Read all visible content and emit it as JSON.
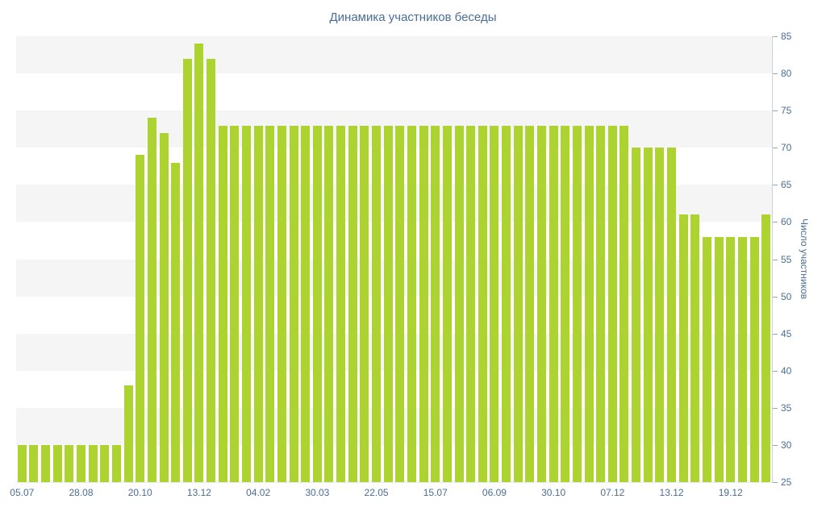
{
  "chart_data": {
    "type": "bar",
    "title": "Динамика участников беседы",
    "ylabel": "Число участников",
    "ylim": [
      25,
      85
    ],
    "ytick_step": 5,
    "ytick_labels": [
      25,
      30,
      35,
      40,
      45,
      50,
      55,
      60,
      65,
      70,
      75,
      80,
      85
    ],
    "x_labels": [
      "05.07",
      "28.08",
      "20.10",
      "13.12",
      "04.02",
      "30.03",
      "22.05",
      "15.07",
      "06.09",
      "30.10",
      "07.12",
      "13.12",
      "19.12"
    ],
    "x_label_every": 5,
    "values": [
      30,
      30,
      30,
      30,
      30,
      30,
      30,
      30,
      30,
      38,
      69,
      74,
      72,
      68,
      82,
      84,
      82,
      73,
      73,
      73,
      73,
      73,
      73,
      73,
      73,
      73,
      73,
      73,
      73,
      73,
      73,
      73,
      73,
      73,
      73,
      73,
      73,
      73,
      73,
      73,
      73,
      73,
      73,
      73,
      73,
      73,
      73,
      73,
      73,
      73,
      73,
      73,
      70,
      70,
      70,
      70,
      61,
      61,
      58,
      58,
      58,
      58,
      58,
      61
    ],
    "bar_color": "#acd32f",
    "stripe_color": "#f5f5f5",
    "background_color": "#ffffff",
    "text_color": "#4a6e96",
    "grid": "horizontal-bands",
    "legend": "none",
    "y_axis_position": "right"
  }
}
